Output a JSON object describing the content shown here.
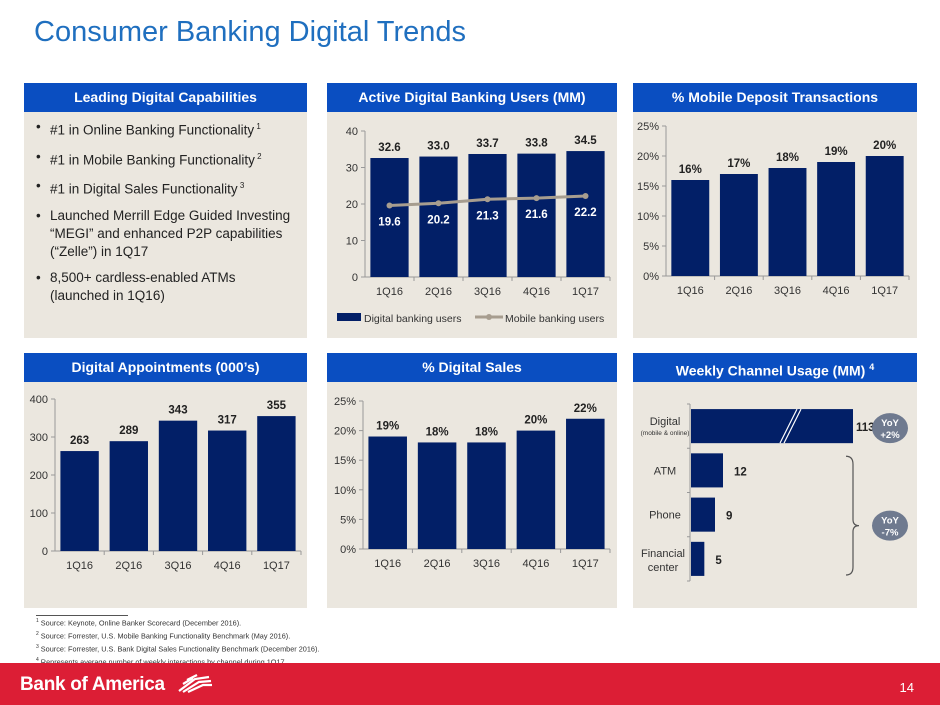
{
  "page": {
    "title": "Consumer Banking Digital Trends",
    "page_number": "14",
    "brand": "Bank of America",
    "colors": {
      "header_blue": "#0a4ec1",
      "bar_navy": "#021f67",
      "line_tan": "#a79d8f",
      "panel_bg": "#ebe7df",
      "footer_red": "#dc1e35",
      "title_blue": "#1f6fbf",
      "badge_gray": "#6f7a8f"
    }
  },
  "capabilities": {
    "heading": "Leading Digital Capabilities",
    "items": [
      {
        "text": "#1 in Online Banking Functionality",
        "sup": "1"
      },
      {
        "text": "#1 in Mobile Banking Functionality",
        "sup": "2"
      },
      {
        "text": "#1 in Digital Sales Functionality",
        "sup": "3"
      },
      {
        "text": "Launched Merrill Edge Guided Investing “MEGI” and enhanced P2P capabilities (“Zelle”) in 1Q17",
        "sup": ""
      },
      {
        "text": "8,500+ cardless-enabled ATMs (launched in 1Q16)",
        "sup": ""
      }
    ]
  },
  "footnotes": [
    {
      "num": "1",
      "text": "Source: Keynote, Online Banker Scorecard (December 2016)."
    },
    {
      "num": "2",
      "text": "Source: Forrester, U.S. Mobile Banking Functionality Benchmark (May 2016)."
    },
    {
      "num": "3",
      "text": "Source: Forrester, U.S. Bank Digital Sales Functionality Benchmark (December 2016)."
    },
    {
      "num": "4",
      "text": "Represents average number of weekly interactions by channel during 1Q17."
    }
  ],
  "chart_data": [
    {
      "id": "active-users",
      "type": "bar",
      "title": "Active Digital Banking Users (MM)",
      "categories": [
        "1Q16",
        "2Q16",
        "3Q16",
        "4Q16",
        "1Q17"
      ],
      "series": [
        {
          "name": "Digital banking users",
          "type": "bar",
          "values": [
            32.6,
            33.0,
            33.7,
            33.8,
            34.5
          ],
          "labels": [
            "32.6",
            "33.0",
            "33.7",
            "33.8",
            "34.5"
          ]
        },
        {
          "name": "Mobile banking users",
          "type": "line",
          "values": [
            19.6,
            20.2,
            21.3,
            21.6,
            22.2
          ],
          "labels": [
            "19.6",
            "20.2",
            "21.3",
            "21.6",
            "22.2"
          ]
        }
      ],
      "ylim": [
        0,
        40
      ],
      "yticks": [
        0,
        10,
        20,
        30,
        40
      ],
      "ytick_labels": [
        "0",
        "10",
        "20",
        "30",
        "40"
      ],
      "legend": "bottom",
      "grid": false
    },
    {
      "id": "mobile-deposit",
      "type": "bar",
      "title": "% Mobile Deposit Transactions",
      "categories": [
        "1Q16",
        "2Q16",
        "3Q16",
        "4Q16",
        "1Q17"
      ],
      "values": [
        16,
        17,
        18,
        19,
        20
      ],
      "labels": [
        "16%",
        "17%",
        "18%",
        "19%",
        "20%"
      ],
      "ylim": [
        0,
        25
      ],
      "yticks": [
        0,
        5,
        10,
        15,
        20,
        25
      ],
      "ytick_labels": [
        "0%",
        "5%",
        "10%",
        "15%",
        "20%",
        "25%"
      ],
      "grid": false
    },
    {
      "id": "digital-appointments",
      "type": "bar",
      "title": "Digital Appointments (000’s)",
      "categories": [
        "1Q16",
        "2Q16",
        "3Q16",
        "4Q16",
        "1Q17"
      ],
      "values": [
        263,
        289,
        343,
        317,
        355
      ],
      "labels": [
        "263",
        "289",
        "343",
        "317",
        "355"
      ],
      "ylim": [
        0,
        400
      ],
      "yticks": [
        0,
        100,
        200,
        300,
        400
      ],
      "ytick_labels": [
        "0",
        "100",
        "200",
        "300",
        "400"
      ],
      "grid": false
    },
    {
      "id": "digital-sales",
      "type": "bar",
      "title": "% Digital Sales",
      "categories": [
        "1Q16",
        "2Q16",
        "3Q16",
        "4Q16",
        "1Q17"
      ],
      "values": [
        19,
        18,
        18,
        20,
        22
      ],
      "labels": [
        "19%",
        "18%",
        "18%",
        "20%",
        "22%"
      ],
      "ylim": [
        0,
        25
      ],
      "yticks": [
        0,
        5,
        10,
        15,
        20,
        25
      ],
      "ytick_labels": [
        "0%",
        "5%",
        "10%",
        "15%",
        "20%",
        "25%"
      ],
      "grid": false
    },
    {
      "id": "weekly-channel",
      "type": "bar",
      "orientation": "horizontal",
      "title": "Weekly Channel Usage (MM)",
      "title_sup": "4",
      "categories": [
        "Digital",
        "ATM",
        "Phone",
        "Financial center"
      ],
      "category_sublabels": [
        "(mobile & online)",
        "",
        "",
        ""
      ],
      "values": [
        113,
        12,
        9,
        5
      ],
      "labels": [
        "113",
        "12",
        "9",
        "5"
      ],
      "axis_break_on": "Digital",
      "annotations": [
        {
          "text": "YoY",
          "value": "+2%",
          "applies_to": [
            "Digital"
          ]
        },
        {
          "text": "YoY",
          "value": "-7%",
          "applies_to": [
            "ATM",
            "Phone",
            "Financial center"
          ]
        }
      ]
    }
  ]
}
